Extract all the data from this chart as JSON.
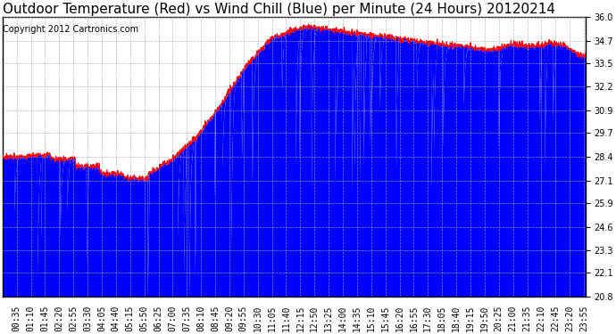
{
  "title": "Outdoor Temperature (Red) vs Wind Chill (Blue) per Minute (24 Hours) 20120214",
  "copyright": "Copyright 2012 Cartronics.com",
  "ylim": [
    20.8,
    36.0
  ],
  "yticks": [
    20.8,
    22.1,
    23.3,
    24.6,
    25.9,
    27.1,
    28.4,
    29.7,
    30.9,
    32.2,
    33.5,
    34.7,
    36.0
  ],
  "bg_color": "#ffffff",
  "plot_bg_color": "#ffffff",
  "grid_color": "#aaaaaa",
  "red_color": "#ff0000",
  "blue_color": "#0000ff",
  "title_fontsize": 11,
  "copyright_fontsize": 7,
  "tick_fontsize": 7,
  "n_minutes": 1440
}
